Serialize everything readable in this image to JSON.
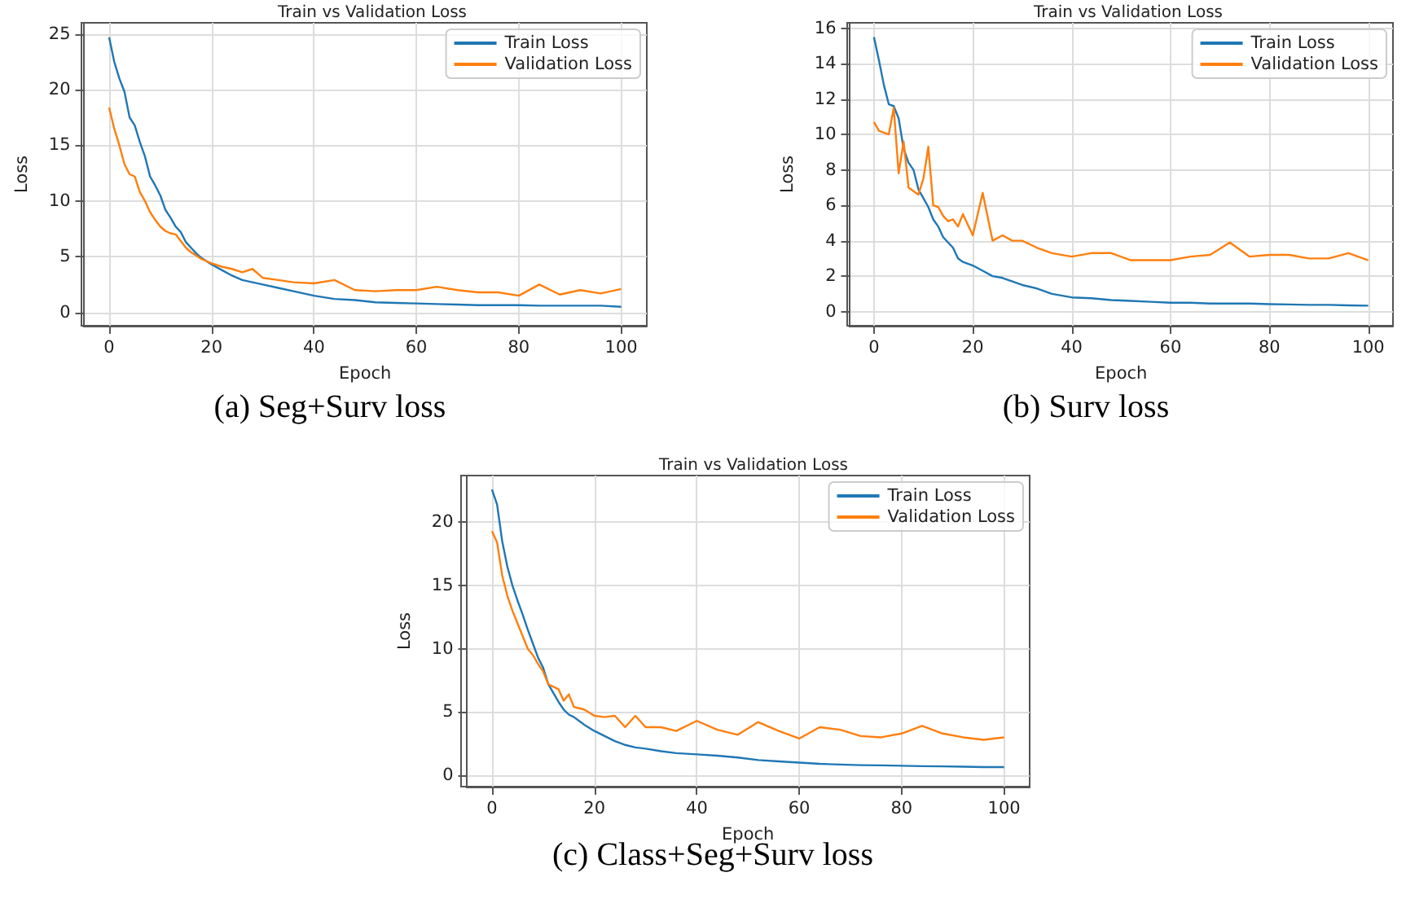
{
  "chart_data": [
    {
      "type": "line",
      "title": "Train vs Validation Loss",
      "xlabel": "Epoch",
      "ylabel": "Loss",
      "annotations": [
        "(a) Seg+Surv loss"
      ],
      "x": [
        0,
        1,
        2,
        3,
        4,
        5,
        6,
        7,
        8,
        9,
        10,
        11,
        12,
        13,
        14,
        15,
        16,
        17,
        18,
        20,
        22,
        24,
        26,
        28,
        30,
        33,
        36,
        40,
        44,
        48,
        52,
        56,
        60,
        64,
        68,
        72,
        76,
        80,
        84,
        88,
        92,
        96,
        100
      ],
      "xlim": [
        -5,
        105
      ],
      "xticks": [
        0,
        20,
        40,
        60,
        80,
        100
      ],
      "ylim": [
        -1.2,
        26
      ],
      "yticks": [
        0,
        5,
        10,
        15,
        20,
        25
      ],
      "grid": true,
      "legend": "top right",
      "series": [
        {
          "name": "Train Loss",
          "color": "#1f77b4",
          "values": [
            24.7,
            22.5,
            21,
            19.8,
            17.5,
            16.8,
            15.3,
            14,
            12.2,
            11.4,
            10.5,
            9.2,
            8.5,
            7.7,
            7.2,
            6.3,
            5.8,
            5.3,
            4.9,
            4.3,
            3.8,
            3.3,
            2.9,
            2.7,
            2.5,
            2.2,
            1.9,
            1.5,
            1.2,
            1.1,
            0.9,
            0.85,
            0.8,
            0.75,
            0.7,
            0.65,
            0.65,
            0.65,
            0.6,
            0.6,
            0.6,
            0.6,
            0.5
          ]
        },
        {
          "name": "Validation Loss",
          "color": "#ff7f0e",
          "values": [
            18.4,
            16.5,
            15,
            13.3,
            12.4,
            12.2,
            10.8,
            10,
            9,
            8.3,
            7.7,
            7.3,
            7.1,
            7,
            6.4,
            5.8,
            5.4,
            5.1,
            4.8,
            4.4,
            4.1,
            3.9,
            3.6,
            3.9,
            3.1,
            2.9,
            2.7,
            2.6,
            2.9,
            2.0,
            1.9,
            2.0,
            2.0,
            2.3,
            2.0,
            1.8,
            1.8,
            1.5,
            2.5,
            1.6,
            2.0,
            1.7,
            2.1
          ]
        }
      ]
    },
    {
      "type": "line",
      "title": "Train vs Validation Loss",
      "xlabel": "Epoch",
      "ylabel": "Loss",
      "annotations": [
        "(b) Surv loss"
      ],
      "x": [
        0,
        1,
        2,
        3,
        4,
        5,
        6,
        7,
        8,
        9,
        10,
        11,
        12,
        13,
        14,
        15,
        16,
        17,
        18,
        20,
        22,
        24,
        26,
        28,
        30,
        33,
        36,
        40,
        44,
        48,
        52,
        56,
        60,
        64,
        68,
        72,
        76,
        80,
        84,
        88,
        92,
        96,
        100
      ],
      "xlim": [
        -5,
        105
      ],
      "xticks": [
        0,
        20,
        40,
        60,
        80,
        100
      ],
      "ylim": [
        -0.8,
        16.3
      ],
      "yticks": [
        0,
        2,
        4,
        6,
        8,
        10,
        12,
        14,
        16
      ],
      "grid": true,
      "legend": "top right",
      "series": [
        {
          "name": "Train Loss",
          "color": "#1f77b4",
          "values": [
            15.5,
            14.2,
            12.8,
            11.7,
            11.6,
            10.9,
            9.2,
            8.4,
            8.0,
            6.9,
            6.4,
            5.9,
            5.2,
            4.8,
            4.2,
            3.9,
            3.6,
            3.0,
            2.8,
            2.6,
            2.3,
            2.0,
            1.9,
            1.7,
            1.5,
            1.3,
            1.0,
            0.8,
            0.75,
            0.65,
            0.6,
            0.55,
            0.5,
            0.5,
            0.45,
            0.45,
            0.45,
            0.42,
            0.4,
            0.38,
            0.38,
            0.35,
            0.33
          ]
        },
        {
          "name": "Validation Loss",
          "color": "#ff7f0e",
          "values": [
            10.7,
            10.2,
            10.1,
            10.0,
            11.5,
            7.8,
            9.6,
            7.0,
            6.8,
            6.6,
            7.5,
            9.3,
            6.0,
            5.9,
            5.4,
            5.1,
            5.2,
            4.8,
            5.5,
            4.3,
            6.7,
            4.0,
            4.3,
            4.0,
            4.0,
            3.6,
            3.3,
            3.1,
            3.3,
            3.3,
            2.9,
            2.9,
            2.9,
            3.1,
            3.2,
            3.9,
            3.1,
            3.2,
            3.2,
            3.0,
            3.0,
            3.3,
            2.9
          ]
        }
      ]
    },
    {
      "type": "line",
      "title": "Train vs Validation Loss",
      "xlabel": "Epoch",
      "ylabel": "Loss",
      "annotations": [
        "(c) Class+Seg+Surv loss"
      ],
      "x": [
        0,
        1,
        2,
        3,
        4,
        5,
        6,
        7,
        8,
        9,
        10,
        11,
        12,
        13,
        14,
        15,
        16,
        17,
        18,
        20,
        22,
        24,
        26,
        28,
        30,
        33,
        36,
        40,
        44,
        48,
        52,
        56,
        60,
        64,
        68,
        72,
        76,
        80,
        84,
        88,
        92,
        96,
        100
      ],
      "xlim": [
        -5,
        105
      ],
      "xticks": [
        0,
        20,
        40,
        60,
        80,
        100
      ],
      "ylim": [
        -0.9,
        23.7
      ],
      "yticks": [
        0,
        5,
        10,
        15,
        20
      ],
      "grid": true,
      "legend": "top right",
      "series": [
        {
          "name": "Train Loss",
          "color": "#1f77b4",
          "values": [
            22.6,
            21.4,
            18.5,
            16.5,
            15,
            13.8,
            12.7,
            11.5,
            10.4,
            9.3,
            8.5,
            7.2,
            6.5,
            5.8,
            5.2,
            4.8,
            4.6,
            4.3,
            4.0,
            3.5,
            3.1,
            2.7,
            2.4,
            2.2,
            2.1,
            1.9,
            1.75,
            1.65,
            1.55,
            1.4,
            1.2,
            1.1,
            1.0,
            0.9,
            0.85,
            0.8,
            0.78,
            0.75,
            0.72,
            0.7,
            0.68,
            0.65,
            0.65
          ]
        },
        {
          "name": "Validation Loss",
          "color": "#ff7f0e",
          "values": [
            19.3,
            18.4,
            15.8,
            14.2,
            13,
            12,
            11,
            10,
            9.5,
            8.8,
            8.2,
            7.2,
            7.0,
            6.8,
            5.9,
            6.4,
            5.4,
            5.3,
            5.2,
            4.7,
            4.6,
            4.7,
            3.8,
            4.7,
            3.8,
            3.8,
            3.5,
            4.3,
            3.6,
            3.2,
            4.2,
            3.5,
            2.9,
            3.8,
            3.6,
            3.1,
            3.0,
            3.3,
            3.9,
            3.3,
            3.0,
            2.8,
            3.0
          ]
        }
      ]
    }
  ]
}
